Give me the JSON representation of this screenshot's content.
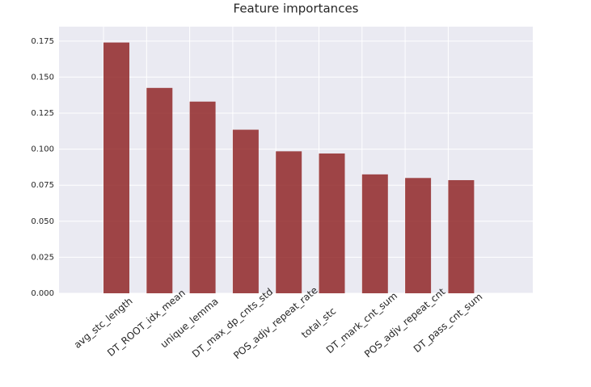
{
  "chart_data": {
    "type": "bar",
    "title": "Feature importances",
    "categories": [
      "avg_stc_length",
      "DT_ROOT_idx_mean",
      "unique_lemma",
      "DT_max_dp_cnts_std",
      "POS_adjv_repeat_rate",
      "total_stc",
      "DT_mark_cnt_sum",
      "POS_adjv_repeat_cnt",
      "DT_pass_cnt_sum"
    ],
    "values": [
      0.174,
      0.1425,
      0.133,
      0.1135,
      0.0985,
      0.097,
      0.0825,
      0.08,
      0.0785
    ],
    "color": "#8b1a1a",
    "ylim": [
      0,
      0.185
    ],
    "yticks": [
      {
        "value": 0,
        "label": "0.000"
      },
      {
        "value": 0.025,
        "label": "0.025"
      },
      {
        "value": 0.05,
        "label": "0.050"
      },
      {
        "value": 0.075,
        "label": "0.075"
      },
      {
        "value": 0.1,
        "label": "0.100"
      },
      {
        "value": 0.125,
        "label": "0.125"
      },
      {
        "value": 0.15,
        "label": "0.150"
      },
      {
        "value": 0.175,
        "label": "0.175"
      }
    ],
    "grid": true
  }
}
